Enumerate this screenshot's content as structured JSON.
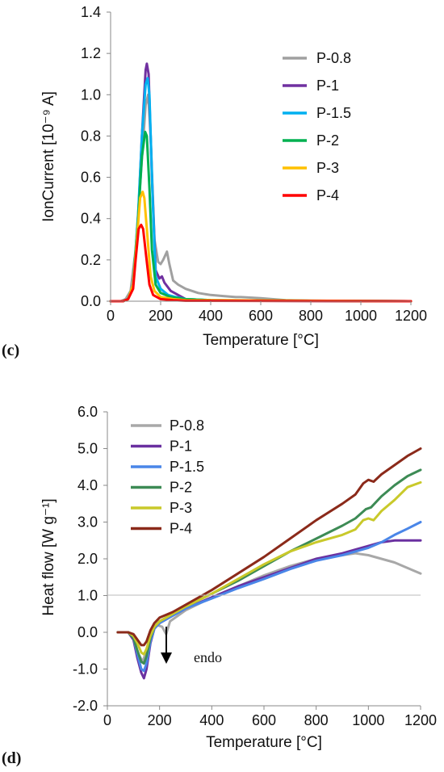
{
  "panels": [
    {
      "letter": "(c)"
    },
    {
      "letter": "(d)"
    }
  ],
  "chart_data": [
    {
      "type": "line",
      "xlabel": "Temperature [°C]",
      "ylabel": "IonCurrent [10⁻⁹ A]",
      "xlim": [
        0,
        1200
      ],
      "ylim": [
        0,
        1.4
      ],
      "xticks": [
        0,
        200,
        400,
        600,
        800,
        1000,
        1200
      ],
      "yticks": [
        0.0,
        0.2,
        0.4,
        0.6,
        0.8,
        1.0,
        1.2,
        1.4
      ],
      "grid": false,
      "legend_position": "top-right",
      "series": [
        {
          "name": "P-0.8",
          "color": "#a0a0a0",
          "points": [
            [
              0,
              0
            ],
            [
              40,
              0
            ],
            [
              60,
              0.01
            ],
            [
              80,
              0.05
            ],
            [
              100,
              0.25
            ],
            [
              120,
              0.6
            ],
            [
              140,
              0.95
            ],
            [
              150,
              1.0
            ],
            [
              160,
              0.8
            ],
            [
              175,
              0.3
            ],
            [
              190,
              0.19
            ],
            [
              200,
              0.18
            ],
            [
              210,
              0.2
            ],
            [
              225,
              0.24
            ],
            [
              235,
              0.18
            ],
            [
              250,
              0.1
            ],
            [
              270,
              0.08
            ],
            [
              300,
              0.06
            ],
            [
              350,
              0.04
            ],
            [
              400,
              0.03
            ],
            [
              450,
              0.025
            ],
            [
              500,
              0.02
            ],
            [
              520,
              0.02
            ],
            [
              600,
              0.015
            ],
            [
              700,
              0.005
            ],
            [
              800,
              0.002
            ],
            [
              1000,
              0.001
            ],
            [
              1200,
              0.0
            ]
          ]
        },
        {
          "name": "P-1",
          "color": "#7030a0",
          "points": [
            [
              0,
              0
            ],
            [
              50,
              0
            ],
            [
              70,
              0.01
            ],
            [
              90,
              0.08
            ],
            [
              110,
              0.4
            ],
            [
              125,
              0.8
            ],
            [
              140,
              1.12
            ],
            [
              145,
              1.15
            ],
            [
              152,
              1.1
            ],
            [
              165,
              0.6
            ],
            [
              180,
              0.15
            ],
            [
              195,
              0.11
            ],
            [
              205,
              0.12
            ],
            [
              215,
              0.09
            ],
            [
              240,
              0.05
            ],
            [
              270,
              0.03
            ],
            [
              300,
              0.01
            ],
            [
              400,
              0.005
            ],
            [
              600,
              0.002
            ],
            [
              1200,
              0.0
            ]
          ]
        },
        {
          "name": "P-1.5",
          "color": "#00b0f0",
          "points": [
            [
              0,
              0
            ],
            [
              50,
              0
            ],
            [
              70,
              0.01
            ],
            [
              90,
              0.08
            ],
            [
              110,
              0.42
            ],
            [
              125,
              0.8
            ],
            [
              140,
              1.05
            ],
            [
              148,
              1.08
            ],
            [
              155,
              1.0
            ],
            [
              168,
              0.5
            ],
            [
              180,
              0.12
            ],
            [
              200,
              0.06
            ],
            [
              230,
              0.03
            ],
            [
              260,
              0.02
            ],
            [
              300,
              0.01
            ],
            [
              400,
              0.005
            ],
            [
              600,
              0.002
            ],
            [
              1200,
              0.0
            ]
          ]
        },
        {
          "name": "P-2",
          "color": "#00b050",
          "points": [
            [
              0,
              0
            ],
            [
              50,
              0
            ],
            [
              70,
              0.01
            ],
            [
              90,
              0.08
            ],
            [
              110,
              0.4
            ],
            [
              125,
              0.7
            ],
            [
              138,
              0.82
            ],
            [
              145,
              0.8
            ],
            [
              155,
              0.55
            ],
            [
              165,
              0.25
            ],
            [
              180,
              0.08
            ],
            [
              200,
              0.04
            ],
            [
              240,
              0.02
            ],
            [
              300,
              0.01
            ],
            [
              400,
              0.005
            ],
            [
              1200,
              0.0
            ]
          ]
        },
        {
          "name": "P-3",
          "color": "#ffc000",
          "points": [
            [
              0,
              0
            ],
            [
              50,
              0
            ],
            [
              70,
              0.01
            ],
            [
              90,
              0.08
            ],
            [
              105,
              0.3
            ],
            [
              118,
              0.5
            ],
            [
              128,
              0.53
            ],
            [
              135,
              0.5
            ],
            [
              148,
              0.3
            ],
            [
              160,
              0.12
            ],
            [
              175,
              0.05
            ],
            [
              200,
              0.02
            ],
            [
              250,
              0.01
            ],
            [
              300,
              0.005
            ],
            [
              1200,
              0.0
            ]
          ]
        },
        {
          "name": "P-4",
          "color": "#ff0000",
          "points": [
            [
              0,
              0
            ],
            [
              50,
              0
            ],
            [
              70,
              0.01
            ],
            [
              90,
              0.06
            ],
            [
              100,
              0.2
            ],
            [
              112,
              0.35
            ],
            [
              122,
              0.37
            ],
            [
              130,
              0.35
            ],
            [
              142,
              0.22
            ],
            [
              155,
              0.08
            ],
            [
              170,
              0.03
            ],
            [
              200,
              0.01
            ],
            [
              250,
              0.005
            ],
            [
              300,
              0.002
            ],
            [
              1200,
              0.0
            ]
          ]
        }
      ]
    },
    {
      "type": "line",
      "xlabel": "Temperature [°C]",
      "ylabel": "Heat flow [W g⁻¹]",
      "xlim": [
        0,
        1200
      ],
      "ylim": [
        -2,
        6
      ],
      "xticks": [
        0,
        200,
        400,
        600,
        800,
        1000,
        1200
      ],
      "yticks": [
        -2.0,
        -1.0,
        0.0,
        1.0,
        2.0,
        3.0,
        4.0,
        5.0,
        6.0
      ],
      "grid": false,
      "legend_position": "top-left",
      "annotations": [
        {
          "text": "endo",
          "x": 230,
          "y": -1.4
        }
      ],
      "series": [
        {
          "name": "P-0.8",
          "color": "#a8a8a8",
          "points": [
            [
              40,
              0
            ],
            [
              80,
              0
            ],
            [
              100,
              -0.2
            ],
            [
              120,
              -0.6
            ],
            [
              135,
              -0.8
            ],
            [
              150,
              -0.5
            ],
            [
              170,
              0.1
            ],
            [
              190,
              0.2
            ],
            [
              210,
              0.15
            ],
            [
              225,
              -0.05
            ],
            [
              240,
              0.3
            ],
            [
              300,
              0.6
            ],
            [
              400,
              0.95
            ],
            [
              500,
              1.25
            ],
            [
              600,
              1.55
            ],
            [
              700,
              1.8
            ],
            [
              800,
              2.0
            ],
            [
              900,
              2.1
            ],
            [
              950,
              2.15
            ],
            [
              1000,
              2.1
            ],
            [
              1050,
              2.0
            ],
            [
              1100,
              1.9
            ],
            [
              1150,
              1.75
            ],
            [
              1200,
              1.6
            ]
          ]
        },
        {
          "name": "P-1",
          "color": "#6a30a0",
          "points": [
            [
              40,
              0
            ],
            [
              80,
              0
            ],
            [
              100,
              -0.2
            ],
            [
              115,
              -0.7
            ],
            [
              130,
              -1.1
            ],
            [
              140,
              -1.25
            ],
            [
              150,
              -1.0
            ],
            [
              165,
              -0.3
            ],
            [
              180,
              0.1
            ],
            [
              200,
              0.25
            ],
            [
              250,
              0.45
            ],
            [
              300,
              0.65
            ],
            [
              400,
              0.95
            ],
            [
              500,
              1.25
            ],
            [
              600,
              1.5
            ],
            [
              700,
              1.75
            ],
            [
              800,
              2.0
            ],
            [
              900,
              2.15
            ],
            [
              950,
              2.25
            ],
            [
              1000,
              2.35
            ],
            [
              1050,
              2.45
            ],
            [
              1100,
              2.5
            ],
            [
              1150,
              2.5
            ],
            [
              1200,
              2.5
            ]
          ]
        },
        {
          "name": "P-1.5",
          "color": "#4a86e8",
          "points": [
            [
              40,
              0
            ],
            [
              80,
              0
            ],
            [
              100,
              -0.15
            ],
            [
              115,
              -0.6
            ],
            [
              130,
              -1.0
            ],
            [
              140,
              -1.05
            ],
            [
              150,
              -0.85
            ],
            [
              165,
              -0.25
            ],
            [
              180,
              0.1
            ],
            [
              200,
              0.25
            ],
            [
              250,
              0.45
            ],
            [
              300,
              0.65
            ],
            [
              400,
              0.92
            ],
            [
              500,
              1.2
            ],
            [
              600,
              1.45
            ],
            [
              700,
              1.72
            ],
            [
              800,
              1.95
            ],
            [
              900,
              2.1
            ],
            [
              950,
              2.2
            ],
            [
              1000,
              2.3
            ],
            [
              1050,
              2.45
            ],
            [
              1100,
              2.65
            ],
            [
              1150,
              2.82
            ],
            [
              1200,
              3.0
            ]
          ]
        },
        {
          "name": "P-2",
          "color": "#3d8b55",
          "points": [
            [
              40,
              0
            ],
            [
              80,
              0
            ],
            [
              100,
              -0.15
            ],
            [
              115,
              -0.5
            ],
            [
              130,
              -0.8
            ],
            [
              140,
              -0.85
            ],
            [
              150,
              -0.65
            ],
            [
              165,
              -0.15
            ],
            [
              180,
              0.15
            ],
            [
              200,
              0.3
            ],
            [
              250,
              0.5
            ],
            [
              300,
              0.7
            ],
            [
              400,
              1.05
            ],
            [
              500,
              1.4
            ],
            [
              600,
              1.8
            ],
            [
              700,
              2.2
            ],
            [
              800,
              2.55
            ],
            [
              900,
              2.9
            ],
            [
              950,
              3.1
            ],
            [
              990,
              3.35
            ],
            [
              1010,
              3.4
            ],
            [
              1050,
              3.7
            ],
            [
              1100,
              4.0
            ],
            [
              1150,
              4.25
            ],
            [
              1200,
              4.42
            ]
          ]
        },
        {
          "name": "P-3",
          "color": "#c9c92a",
          "points": [
            [
              40,
              0
            ],
            [
              80,
              0
            ],
            [
              100,
              -0.1
            ],
            [
              115,
              -0.3
            ],
            [
              130,
              -0.55
            ],
            [
              140,
              -0.6
            ],
            [
              150,
              -0.45
            ],
            [
              165,
              -0.1
            ],
            [
              180,
              0.15
            ],
            [
              200,
              0.3
            ],
            [
              250,
              0.5
            ],
            [
              300,
              0.7
            ],
            [
              400,
              1.05
            ],
            [
              500,
              1.45
            ],
            [
              600,
              1.85
            ],
            [
              700,
              2.2
            ],
            [
              800,
              2.45
            ],
            [
              900,
              2.65
            ],
            [
              950,
              2.8
            ],
            [
              980,
              3.05
            ],
            [
              1000,
              3.1
            ],
            [
              1020,
              3.05
            ],
            [
              1050,
              3.3
            ],
            [
              1100,
              3.6
            ],
            [
              1150,
              3.95
            ],
            [
              1200,
              4.08
            ]
          ]
        },
        {
          "name": "P-4",
          "color": "#8b2a1a",
          "points": [
            [
              40,
              0
            ],
            [
              80,
              0
            ],
            [
              100,
              -0.05
            ],
            [
              115,
              -0.2
            ],
            [
              130,
              -0.35
            ],
            [
              140,
              -0.35
            ],
            [
              150,
              -0.25
            ],
            [
              165,
              0.05
            ],
            [
              180,
              0.25
            ],
            [
              200,
              0.4
            ],
            [
              250,
              0.55
            ],
            [
              300,
              0.75
            ],
            [
              400,
              1.15
            ],
            [
              500,
              1.6
            ],
            [
              600,
              2.05
            ],
            [
              700,
              2.55
            ],
            [
              800,
              3.05
            ],
            [
              900,
              3.5
            ],
            [
              950,
              3.75
            ],
            [
              980,
              4.05
            ],
            [
              1000,
              4.15
            ],
            [
              1020,
              4.1
            ],
            [
              1050,
              4.3
            ],
            [
              1100,
              4.55
            ],
            [
              1150,
              4.8
            ],
            [
              1200,
              5.0
            ]
          ]
        }
      ]
    }
  ]
}
